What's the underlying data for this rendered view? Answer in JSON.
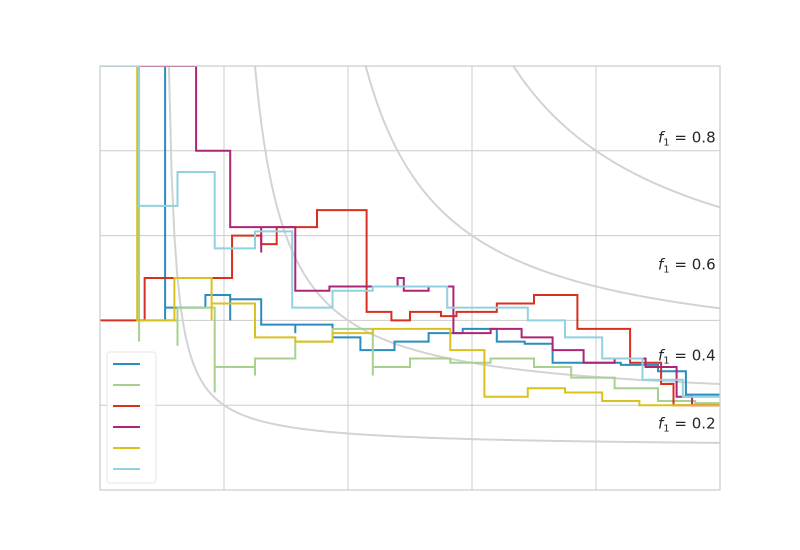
{
  "chart_data": {
    "type": "line",
    "title": "",
    "xlabel": "",
    "ylabel": "",
    "xlim": [
      0,
      1
    ],
    "ylim": [
      0,
      1
    ],
    "grid": true,
    "legend_position": "lower-left",
    "colors": {
      "grid": "#cccccc",
      "iso": "#d3d3d3",
      "spine": "#cccccc"
    },
    "iso_f1": {
      "levels": [
        0.2,
        0.4,
        0.6,
        0.8
      ],
      "label_var": "f",
      "label_sub": "1",
      "label_eq": " = ",
      "labels": [
        "0.2",
        "0.4",
        "0.6",
        "0.8"
      ]
    },
    "series": [
      {
        "color": "#2b8cbe",
        "points": [
          [
            0.0,
            1.0
          ],
          [
            0.105,
            1.0
          ],
          [
            0.105,
            0.4
          ],
          [
            0.105,
            0.4
          ],
          [
            0.105,
            0.43
          ],
          [
            0.17,
            0.43
          ],
          [
            0.17,
            0.46
          ],
          [
            0.21,
            0.46
          ],
          [
            0.21,
            0.4
          ],
          [
            0.21,
            0.45
          ],
          [
            0.26,
            0.45
          ],
          [
            0.26,
            0.39
          ],
          [
            0.315,
            0.39
          ],
          [
            0.315,
            0.37
          ],
          [
            0.315,
            0.37
          ],
          [
            0.315,
            0.39
          ],
          [
            0.375,
            0.39
          ],
          [
            0.375,
            0.36
          ],
          [
            0.42,
            0.36
          ],
          [
            0.42,
            0.33
          ],
          [
            0.475,
            0.33
          ],
          [
            0.475,
            0.35
          ],
          [
            0.53,
            0.35
          ],
          [
            0.53,
            0.37
          ],
          [
            0.585,
            0.37
          ],
          [
            0.585,
            0.38
          ],
          [
            0.64,
            0.38
          ],
          [
            0.64,
            0.35
          ],
          [
            0.685,
            0.35
          ],
          [
            0.685,
            0.345
          ],
          [
            0.73,
            0.345
          ],
          [
            0.73,
            0.3
          ],
          [
            0.79,
            0.3
          ],
          [
            0.79,
            0.3
          ],
          [
            0.84,
            0.3
          ],
          [
            0.84,
            0.295
          ],
          [
            0.9,
            0.295
          ],
          [
            0.9,
            0.28
          ],
          [
            0.945,
            0.28
          ],
          [
            0.945,
            0.225
          ],
          [
            1.0,
            0.225
          ]
        ]
      },
      {
        "color": "#a6d18f",
        "points": [
          [
            0.0,
            1.0
          ],
          [
            0.063,
            1.0
          ],
          [
            0.063,
            0.35
          ],
          [
            0.063,
            0.35
          ],
          [
            0.063,
            0.4
          ],
          [
            0.125,
            0.4
          ],
          [
            0.125,
            0.34
          ],
          [
            0.125,
            0.43
          ],
          [
            0.185,
            0.43
          ],
          [
            0.185,
            0.23
          ],
          [
            0.185,
            0.29
          ],
          [
            0.25,
            0.29
          ],
          [
            0.25,
            0.27
          ],
          [
            0.25,
            0.31
          ],
          [
            0.315,
            0.31
          ],
          [
            0.315,
            0.35
          ],
          [
            0.375,
            0.35
          ],
          [
            0.375,
            0.35
          ],
          [
            0.375,
            0.38
          ],
          [
            0.44,
            0.38
          ],
          [
            0.44,
            0.27
          ],
          [
            0.44,
            0.29
          ],
          [
            0.5,
            0.29
          ],
          [
            0.5,
            0.31
          ],
          [
            0.565,
            0.31
          ],
          [
            0.565,
            0.3
          ],
          [
            0.63,
            0.3
          ],
          [
            0.63,
            0.31
          ],
          [
            0.7,
            0.31
          ],
          [
            0.7,
            0.29
          ],
          [
            0.76,
            0.29
          ],
          [
            0.76,
            0.265
          ],
          [
            0.83,
            0.265
          ],
          [
            0.83,
            0.24
          ],
          [
            0.9,
            0.24
          ],
          [
            0.9,
            0.21
          ],
          [
            0.96,
            0.21
          ],
          [
            0.96,
            0.205
          ],
          [
            1.0,
            0.205
          ]
        ]
      },
      {
        "color": "#d7301f",
        "points": [
          [
            0.0,
            0.4
          ],
          [
            0.072,
            0.4
          ],
          [
            0.072,
            0.5
          ],
          [
            0.107,
            0.5
          ],
          [
            0.107,
            0.5
          ],
          [
            0.134,
            0.5
          ],
          [
            0.134,
            0.5
          ],
          [
            0.213,
            0.5
          ],
          [
            0.213,
            0.6
          ],
          [
            0.26,
            0.6
          ],
          [
            0.26,
            0.58
          ],
          [
            0.285,
            0.58
          ],
          [
            0.285,
            0.62
          ],
          [
            0.35,
            0.62
          ],
          [
            0.35,
            0.66
          ],
          [
            0.43,
            0.66
          ],
          [
            0.43,
            0.42
          ],
          [
            0.47,
            0.42
          ],
          [
            0.47,
            0.4
          ],
          [
            0.5,
            0.4
          ],
          [
            0.5,
            0.42
          ],
          [
            0.55,
            0.42
          ],
          [
            0.55,
            0.41
          ],
          [
            0.575,
            0.41
          ],
          [
            0.575,
            0.42
          ],
          [
            0.64,
            0.42
          ],
          [
            0.64,
            0.44
          ],
          [
            0.7,
            0.44
          ],
          [
            0.7,
            0.46
          ],
          [
            0.77,
            0.46
          ],
          [
            0.77,
            0.38
          ],
          [
            0.805,
            0.38
          ],
          [
            0.805,
            0.38
          ],
          [
            0.855,
            0.38
          ],
          [
            0.855,
            0.3
          ],
          [
            0.905,
            0.3
          ],
          [
            0.905,
            0.25
          ],
          [
            0.925,
            0.25
          ],
          [
            0.925,
            0.2
          ],
          [
            0.94,
            0.2
          ],
          [
            0.94,
            0.2
          ],
          [
            1.0,
            0.2
          ]
        ]
      },
      {
        "color": "#ae2574",
        "points": [
          [
            0.0,
            1.0
          ],
          [
            0.155,
            1.0
          ],
          [
            0.155,
            0.8
          ],
          [
            0.21,
            0.8
          ],
          [
            0.21,
            0.62
          ],
          [
            0.26,
            0.62
          ],
          [
            0.26,
            0.56
          ],
          [
            0.26,
            0.62
          ],
          [
            0.315,
            0.62
          ],
          [
            0.315,
            0.47
          ],
          [
            0.37,
            0.47
          ],
          [
            0.37,
            0.48
          ],
          [
            0.48,
            0.48
          ],
          [
            0.48,
            0.5
          ],
          [
            0.49,
            0.5
          ],
          [
            0.49,
            0.47
          ],
          [
            0.53,
            0.47
          ],
          [
            0.53,
            0.48
          ],
          [
            0.57,
            0.48
          ],
          [
            0.57,
            0.37
          ],
          [
            0.63,
            0.37
          ],
          [
            0.63,
            0.38
          ],
          [
            0.68,
            0.38
          ],
          [
            0.68,
            0.36
          ],
          [
            0.73,
            0.36
          ],
          [
            0.73,
            0.33
          ],
          [
            0.78,
            0.33
          ],
          [
            0.78,
            0.3
          ],
          [
            0.83,
            0.3
          ],
          [
            0.83,
            0.31
          ],
          [
            0.88,
            0.31
          ],
          [
            0.88,
            0.29
          ],
          [
            0.93,
            0.29
          ],
          [
            0.93,
            0.22
          ],
          [
            0.955,
            0.22
          ],
          [
            0.955,
            0.2
          ],
          [
            1.0,
            0.2
          ]
        ]
      },
      {
        "color": "#dcc11e",
        "points": [
          [
            0.0,
            1.0
          ],
          [
            0.06,
            1.0
          ],
          [
            0.06,
            0.4
          ],
          [
            0.06,
            0.4
          ],
          [
            0.06,
            0.4
          ],
          [
            0.12,
            0.4
          ],
          [
            0.12,
            0.4
          ],
          [
            0.12,
            0.5
          ],
          [
            0.18,
            0.5
          ],
          [
            0.18,
            0.4
          ],
          [
            0.18,
            0.44
          ],
          [
            0.25,
            0.44
          ],
          [
            0.25,
            0.36
          ],
          [
            0.315,
            0.36
          ],
          [
            0.315,
            0.35
          ],
          [
            0.375,
            0.35
          ],
          [
            0.375,
            0.37
          ],
          [
            0.44,
            0.37
          ],
          [
            0.44,
            0.38
          ],
          [
            0.5,
            0.38
          ],
          [
            0.5,
            0.38
          ],
          [
            0.565,
            0.38
          ],
          [
            0.565,
            0.33
          ],
          [
            0.62,
            0.33
          ],
          [
            0.62,
            0.22
          ],
          [
            0.69,
            0.22
          ],
          [
            0.69,
            0.24
          ],
          [
            0.75,
            0.24
          ],
          [
            0.75,
            0.23
          ],
          [
            0.81,
            0.23
          ],
          [
            0.81,
            0.21
          ],
          [
            0.87,
            0.21
          ],
          [
            0.87,
            0.2
          ],
          [
            0.93,
            0.2
          ],
          [
            0.93,
            0.2
          ],
          [
            1.0,
            0.2
          ]
        ]
      },
      {
        "color": "#91d1e0",
        "points": [
          [
            0.0,
            1.0
          ],
          [
            0.063,
            1.0
          ],
          [
            0.063,
            0.67
          ],
          [
            0.125,
            0.67
          ],
          [
            0.125,
            0.75
          ],
          [
            0.185,
            0.75
          ],
          [
            0.185,
            0.57
          ],
          [
            0.25,
            0.57
          ],
          [
            0.25,
            0.61
          ],
          [
            0.31,
            0.61
          ],
          [
            0.31,
            0.43
          ],
          [
            0.375,
            0.43
          ],
          [
            0.375,
            0.47
          ],
          [
            0.44,
            0.47
          ],
          [
            0.44,
            0.48
          ],
          [
            0.56,
            0.48
          ],
          [
            0.56,
            0.43
          ],
          [
            0.625,
            0.43
          ],
          [
            0.625,
            0.43
          ],
          [
            0.69,
            0.43
          ],
          [
            0.69,
            0.4
          ],
          [
            0.75,
            0.4
          ],
          [
            0.75,
            0.36
          ],
          [
            0.81,
            0.36
          ],
          [
            0.81,
            0.31
          ],
          [
            0.875,
            0.31
          ],
          [
            0.875,
            0.26
          ],
          [
            0.94,
            0.26
          ],
          [
            0.94,
            0.22
          ],
          [
            1.0,
            0.22
          ]
        ]
      }
    ]
  }
}
